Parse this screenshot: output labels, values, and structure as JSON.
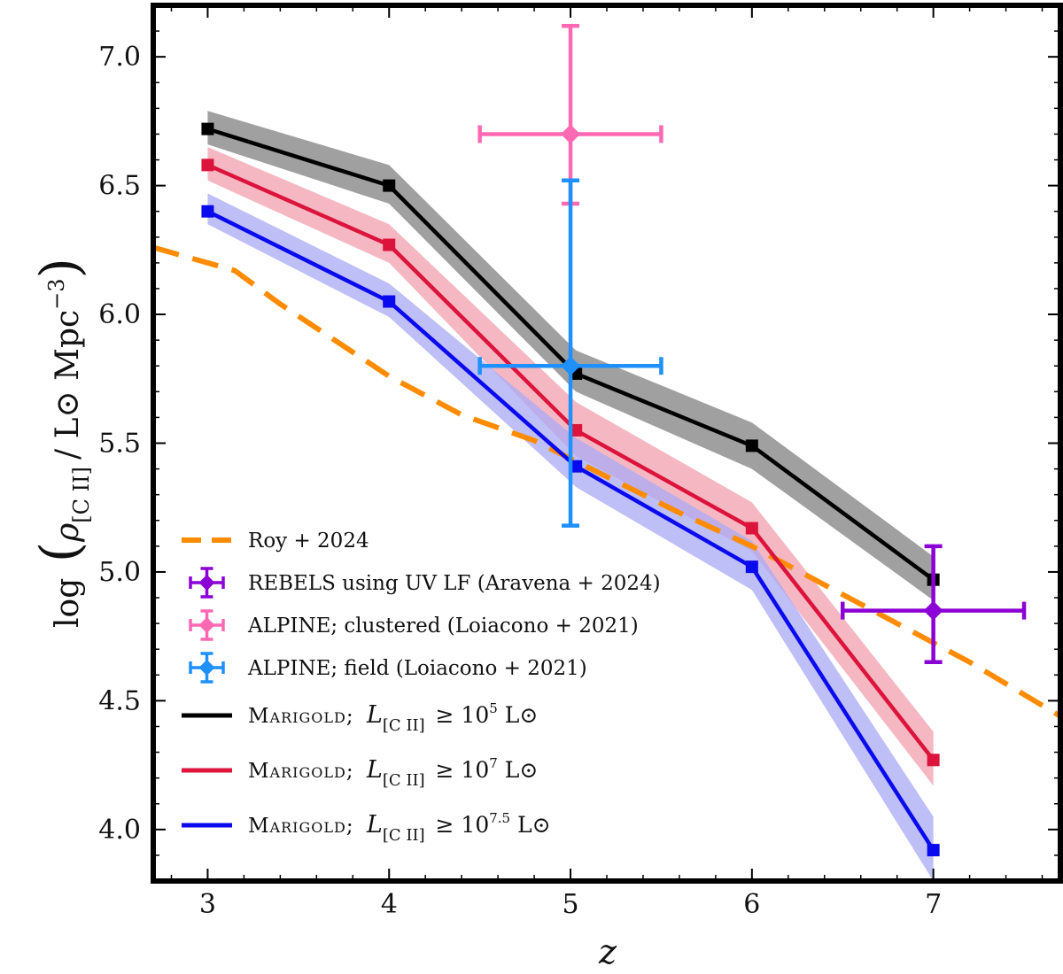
{
  "chart_data": {
    "type": "line",
    "xlabel": "z",
    "ylabel": {
      "prefix": "log",
      "symbol": "ρ",
      "subscript": "[C II]",
      "unit": "/ L⊙ Mpc",
      "exponent": "−3"
    },
    "xlim": [
      2.7,
      7.7
    ],
    "ylim": [
      3.8,
      7.2
    ],
    "xticks": [
      3,
      4,
      5,
      6,
      7
    ],
    "yticks": [
      4.0,
      4.5,
      5.0,
      5.5,
      6.0,
      6.5,
      7.0
    ],
    "xtick_labels": [
      "3",
      "4",
      "5",
      "6",
      "7"
    ],
    "ytick_labels": [
      "4.0",
      "4.5",
      "5.0",
      "5.5",
      "6.0",
      "6.5",
      "7.0"
    ],
    "legend_position": "lower-left",
    "series": [
      {
        "name": "Marigold; L[C II] ≥ 10^5 L⊙",
        "legend_label": {
          "prefix": "Marigold;",
          "sym": "L",
          "sub": "[C II]",
          "rel": "≥ 10",
          "exp": "5",
          "unit": "L⊙"
        },
        "color": "#000000",
        "band_color": "#808080",
        "x": [
          3,
          4,
          5.03,
          6,
          7
        ],
        "y": [
          6.72,
          6.5,
          5.77,
          5.49,
          4.97
        ],
        "lower": [
          6.66,
          6.43,
          5.7,
          5.4,
          4.89
        ],
        "upper": [
          6.79,
          6.58,
          5.86,
          5.58,
          5.06
        ]
      },
      {
        "name": "Marigold; L[C II] ≥ 10^7 L⊙",
        "legend_label": {
          "prefix": "Marigold;",
          "sym": "L",
          "sub": "[C II]",
          "rel": "≥ 10",
          "exp": "7",
          "unit": "L⊙"
        },
        "color": "#dc143c",
        "band_color": "#f1a0ae",
        "x": [
          3,
          4,
          5.03,
          6,
          7
        ],
        "y": [
          6.58,
          6.27,
          5.55,
          5.17,
          4.27
        ],
        "lower": [
          6.52,
          6.2,
          5.45,
          5.08,
          4.17
        ],
        "upper": [
          6.65,
          6.35,
          5.66,
          5.27,
          4.38
        ]
      },
      {
        "name": "Marigold; L[C II] ≥ 10^7.5 L⊙",
        "legend_label": {
          "prefix": "Marigold;",
          "sym": "L",
          "sub": "[C II]",
          "rel": "≥ 10",
          "exp": "7.5",
          "unit": "L⊙"
        },
        "color": "#0a0aee",
        "band_color": "#a9a9f5",
        "x": [
          3,
          4,
          5.03,
          6,
          7
        ],
        "y": [
          6.4,
          6.05,
          5.41,
          5.02,
          3.92
        ],
        "lower": [
          6.35,
          5.99,
          5.33,
          4.93,
          3.8
        ],
        "upper": [
          6.47,
          6.12,
          5.52,
          5.12,
          4.05
        ]
      }
    ],
    "roy_line": {
      "name": "Roy + 2024",
      "color": "#ff8c00",
      "x": [
        2.7,
        2.9,
        3.15,
        3.4,
        3.7,
        4.0,
        4.4,
        4.8,
        5.2,
        5.6,
        6.0,
        6.4,
        6.8,
        7.2,
        7.7
      ],
      "y": [
        6.26,
        6.22,
        6.17,
        6.04,
        5.9,
        5.76,
        5.61,
        5.51,
        5.37,
        5.23,
        5.1,
        4.95,
        4.8,
        4.65,
        4.44
      ]
    },
    "points": [
      {
        "name": "REBELS using UV LF (Aravena + 2024)",
        "color": "#8b00d4",
        "x": 7.0,
        "y": 4.85,
        "xerr": [
          6.5,
          7.5
        ],
        "yerr": [
          4.65,
          5.1
        ]
      },
      {
        "name": "ALPINE; clustered (Loiacono + 2021)",
        "color": "#ff69b4",
        "x": 5.0,
        "y": 6.7,
        "xerr": [
          4.5,
          5.5
        ],
        "yerr": [
          6.43,
          7.12
        ]
      },
      {
        "name": "ALPINE; field (Loiacono + 2021)",
        "color": "#1e90ff",
        "x": 5.0,
        "y": 5.8,
        "xerr": [
          4.5,
          5.5
        ],
        "yerr": [
          5.18,
          6.52
        ]
      }
    ]
  }
}
